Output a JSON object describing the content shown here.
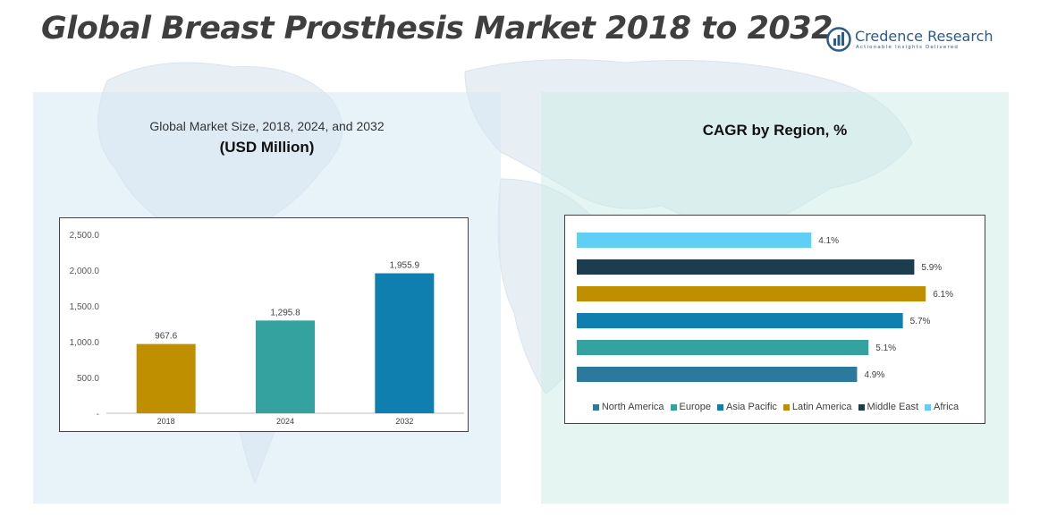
{
  "page": {
    "title": "Global Breast Prosthesis Market 2018 to 2032"
  },
  "logo": {
    "name": "Credence Research",
    "tagline": "Actionable Insights Delivered",
    "icon": "bar-chart-circle-icon",
    "color": "#2a5b8a"
  },
  "left_panel": {
    "subtitle": "Global Market Size, 2018, 2024, and 2032",
    "unit": "(USD Million)"
  },
  "right_panel": {
    "title": "CAGR by Region, %"
  },
  "chart_data": [
    {
      "type": "bar",
      "orientation": "vertical",
      "title": "Global Market Size, 2018, 2024, and 2032",
      "ylabel": "(USD Million)",
      "categories": [
        "2018",
        "2024",
        "2032"
      ],
      "values": [
        967.6,
        1295.8,
        1955.9
      ],
      "data_labels": [
        "967.6",
        "1,295.8",
        "1,955.9"
      ],
      "colors": [
        "#bf8f00",
        "#34a3a0",
        "#0f7fb0"
      ],
      "ylim": [
        0,
        2500
      ],
      "yticks": [
        0,
        500,
        1000,
        1500,
        2000,
        2500
      ],
      "ytick_labels": [
        "-",
        "500.0",
        "1,000.0",
        "1,500.0",
        "2,000.0",
        "2,500.0"
      ],
      "grid": false
    },
    {
      "type": "bar",
      "orientation": "horizontal",
      "title": "CAGR by Region, %",
      "categories": [
        "Africa",
        "Middle East",
        "Latin America",
        "Asia Pacific",
        "Europe",
        "North America"
      ],
      "values": [
        4.1,
        5.9,
        6.1,
        5.7,
        5.1,
        4.9
      ],
      "data_labels": [
        "4.1%",
        "5.9%",
        "6.1%",
        "5.7%",
        "5.1%",
        "4.9%"
      ],
      "colors": [
        "#5fcff5",
        "#1c3d4d",
        "#bf8f00",
        "#0f7fb0",
        "#34a3a0",
        "#2b7a9e"
      ],
      "xlim": [
        0,
        6.3
      ],
      "legend": [
        "North America",
        "Europe",
        "Asia Pacific",
        "Latin America",
        "Middle East",
        "Africa"
      ],
      "legend_colors": [
        "#2b7a9e",
        "#34a3a0",
        "#0f7fb0",
        "#bf8f00",
        "#1c3d4d",
        "#5fcff5"
      ],
      "legend_position": "bottom",
      "grid": false
    }
  ]
}
